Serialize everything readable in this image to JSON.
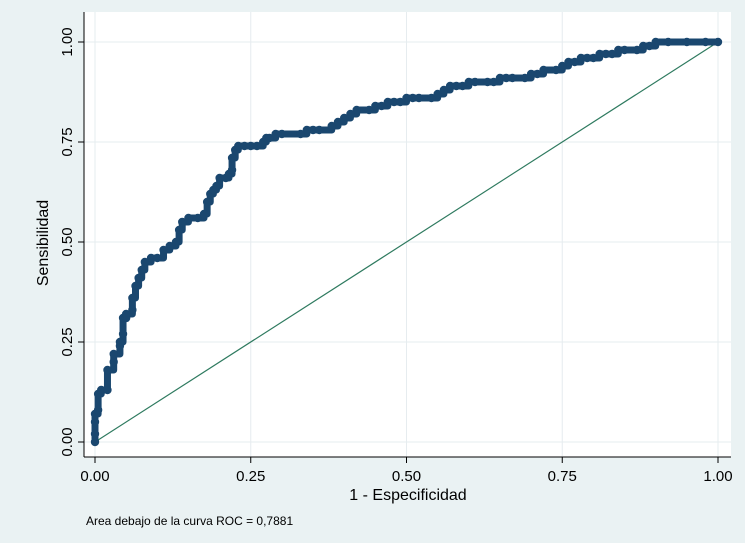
{
  "chart_data": {
    "type": "line",
    "xlabel": "1 - Especificidad",
    "ylabel": "Sensibilidad",
    "xlim": [
      0,
      1
    ],
    "ylim": [
      0,
      1
    ],
    "x_ticks": [
      "0.00",
      "0.25",
      "0.50",
      "0.75",
      "1.00"
    ],
    "y_ticks": [
      "0.00",
      "0.25",
      "0.50",
      "0.75",
      "1.00"
    ],
    "grid": true,
    "note": "Area debajo de la curva ROC = 0,7881",
    "colors": {
      "roc": "#1a476f",
      "reference": "#2e7a5f",
      "grid": "#e6ecef",
      "background": "#eaf2f3",
      "plot_background": "#ffffff"
    },
    "series": [
      {
        "x": [
          0.0,
          0.0,
          0.0,
          0.0,
          0.005,
          0.005,
          0.01,
          0.02,
          0.02,
          0.03,
          0.03,
          0.04,
          0.04,
          0.045,
          0.045,
          0.05,
          0.05,
          0.06,
          0.06,
          0.065,
          0.07,
          0.075,
          0.08,
          0.09,
          0.1,
          0.11,
          0.12,
          0.13,
          0.135,
          0.14,
          0.15,
          0.165,
          0.175,
          0.18,
          0.185,
          0.19,
          0.195,
          0.2,
          0.21,
          0.215,
          0.22,
          0.22,
          0.225,
          0.23,
          0.24,
          0.25,
          0.26,
          0.27,
          0.275,
          0.28,
          0.29,
          0.3,
          0.33,
          0.34,
          0.35,
          0.36,
          0.38,
          0.39,
          0.4,
          0.41,
          0.42,
          0.44,
          0.45,
          0.46,
          0.47,
          0.48,
          0.49,
          0.5,
          0.51,
          0.52,
          0.54,
          0.55,
          0.56,
          0.57,
          0.58,
          0.59,
          0.6,
          0.61,
          0.63,
          0.64,
          0.65,
          0.66,
          0.67,
          0.69,
          0.7,
          0.71,
          0.72,
          0.74,
          0.75,
          0.76,
          0.77,
          0.78,
          0.79,
          0.8,
          0.81,
          0.82,
          0.83,
          0.84,
          0.85,
          0.87,
          0.88,
          0.89,
          0.9,
          0.92,
          0.95,
          0.98,
          1.0
        ],
        "y": [
          0.0,
          0.02,
          0.05,
          0.07,
          0.08,
          0.12,
          0.13,
          0.13,
          0.18,
          0.2,
          0.22,
          0.24,
          0.25,
          0.27,
          0.31,
          0.31,
          0.32,
          0.33,
          0.36,
          0.39,
          0.41,
          0.43,
          0.45,
          0.46,
          0.46,
          0.48,
          0.49,
          0.5,
          0.53,
          0.55,
          0.56,
          0.56,
          0.57,
          0.6,
          0.62,
          0.63,
          0.64,
          0.66,
          0.66,
          0.67,
          0.68,
          0.71,
          0.73,
          0.74,
          0.74,
          0.74,
          0.74,
          0.75,
          0.76,
          0.76,
          0.77,
          0.77,
          0.77,
          0.78,
          0.78,
          0.78,
          0.79,
          0.8,
          0.81,
          0.82,
          0.83,
          0.83,
          0.84,
          0.84,
          0.85,
          0.85,
          0.85,
          0.86,
          0.86,
          0.86,
          0.86,
          0.87,
          0.88,
          0.89,
          0.89,
          0.89,
          0.9,
          0.9,
          0.9,
          0.9,
          0.91,
          0.91,
          0.91,
          0.91,
          0.92,
          0.92,
          0.93,
          0.93,
          0.94,
          0.95,
          0.95,
          0.96,
          0.96,
          0.96,
          0.97,
          0.97,
          0.97,
          0.98,
          0.98,
          0.98,
          0.99,
          0.99,
          1.0,
          1.0,
          1.0,
          1.0,
          1.0
        ]
      },
      {
        "x": [
          0,
          1
        ],
        "y": [
          0,
          1
        ]
      }
    ]
  }
}
